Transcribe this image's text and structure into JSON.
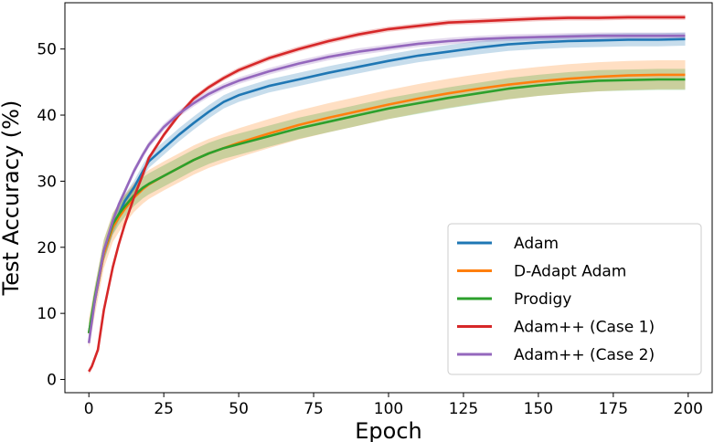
{
  "chart_data": {
    "type": "line",
    "title": "",
    "xlabel": "Epoch",
    "ylabel": "Test Accuracy (%)",
    "xlim": [
      -8,
      208
    ],
    "ylim": [
      -2,
      57
    ],
    "xticks": [
      0,
      25,
      50,
      75,
      100,
      125,
      150,
      175,
      200
    ],
    "yticks": [
      0,
      10,
      20,
      30,
      40,
      50
    ],
    "grid": false,
    "legend_position": "lower-right",
    "series": [
      {
        "name": "Adam",
        "color": "#1f77b4",
        "band": 1.0,
        "x": [
          0,
          2,
          5,
          8,
          10,
          12,
          15,
          18,
          20,
          25,
          30,
          35,
          40,
          45,
          50,
          60,
          70,
          80,
          90,
          100,
          110,
          120,
          130,
          140,
          150,
          160,
          170,
          180,
          190,
          199
        ],
        "y": [
          7,
          12,
          19,
          23,
          25,
          27,
          29,
          31.5,
          33,
          35,
          37,
          38.8,
          40.5,
          42,
          43,
          44.4,
          45.4,
          46.4,
          47.3,
          48.2,
          49,
          49.6,
          50.2,
          50.7,
          51,
          51.2,
          51.3,
          51.4,
          51.4,
          51.5
        ]
      },
      {
        "name": "D-Adapt Adam",
        "color": "#ff7f0e",
        "band": 2.2,
        "x": [
          0,
          2,
          5,
          8,
          10,
          12,
          15,
          18,
          20,
          25,
          30,
          35,
          40,
          45,
          50,
          60,
          70,
          80,
          90,
          100,
          110,
          120,
          130,
          140,
          150,
          160,
          170,
          180,
          190,
          199
        ],
        "y": [
          7,
          12,
          19,
          23,
          24.5,
          25.8,
          27.5,
          28.8,
          29.5,
          30.8,
          32,
          33.2,
          34.2,
          35,
          35.8,
          37.2,
          38.5,
          39.6,
          40.6,
          41.6,
          42.5,
          43.3,
          44,
          44.6,
          45.1,
          45.5,
          45.8,
          46,
          46.1,
          46.1
        ]
      },
      {
        "name": "Prodigy",
        "color": "#2ca02c",
        "band": 1.6,
        "x": [
          0,
          2,
          5,
          8,
          10,
          12,
          15,
          18,
          20,
          25,
          30,
          35,
          40,
          45,
          50,
          60,
          70,
          80,
          90,
          100,
          110,
          120,
          130,
          140,
          150,
          160,
          170,
          180,
          190,
          199
        ],
        "y": [
          7,
          12.5,
          19.5,
          23.5,
          25,
          26.2,
          27.8,
          29,
          29.6,
          30.8,
          32,
          33.2,
          34.2,
          35,
          35.6,
          36.8,
          38,
          39,
          40,
          41,
          41.8,
          42.6,
          43.3,
          44,
          44.5,
          44.9,
          45.2,
          45.3,
          45.4,
          45.4
        ]
      },
      {
        "name": "Adam++ (Case 1)",
        "color": "#d62728",
        "band": 0.4,
        "x": [
          0,
          1,
          3,
          5,
          8,
          10,
          12,
          15,
          18,
          20,
          25,
          30,
          35,
          40,
          45,
          50,
          60,
          70,
          80,
          90,
          100,
          110,
          120,
          130,
          140,
          150,
          160,
          170,
          180,
          190,
          199
        ],
        "y": [
          1.2,
          2,
          4.5,
          10.5,
          17,
          20.5,
          23.5,
          27.5,
          31,
          33.5,
          37,
          40,
          42.5,
          44.2,
          45.6,
          46.8,
          48.6,
          50,
          51.2,
          52.2,
          53,
          53.5,
          54,
          54.2,
          54.4,
          54.6,
          54.7,
          54.7,
          54.8,
          54.8,
          54.8
        ]
      },
      {
        "name": "Adam++ (Case 2)",
        "color": "#9467bd",
        "band": 0.5,
        "x": [
          0,
          2,
          5,
          8,
          10,
          12,
          15,
          18,
          20,
          25,
          30,
          35,
          40,
          45,
          50,
          60,
          70,
          80,
          90,
          100,
          110,
          120,
          130,
          140,
          150,
          160,
          170,
          180,
          190,
          199
        ],
        "y": [
          5.5,
          12,
          19.5,
          24,
          26.5,
          28.5,
          31.5,
          34,
          35.5,
          38.2,
          40.2,
          41.8,
          43.2,
          44.3,
          45.2,
          46.6,
          47.8,
          48.8,
          49.6,
          50.2,
          50.8,
          51.2,
          51.5,
          51.7,
          51.8,
          51.9,
          52,
          52,
          52,
          52
        ]
      }
    ]
  }
}
